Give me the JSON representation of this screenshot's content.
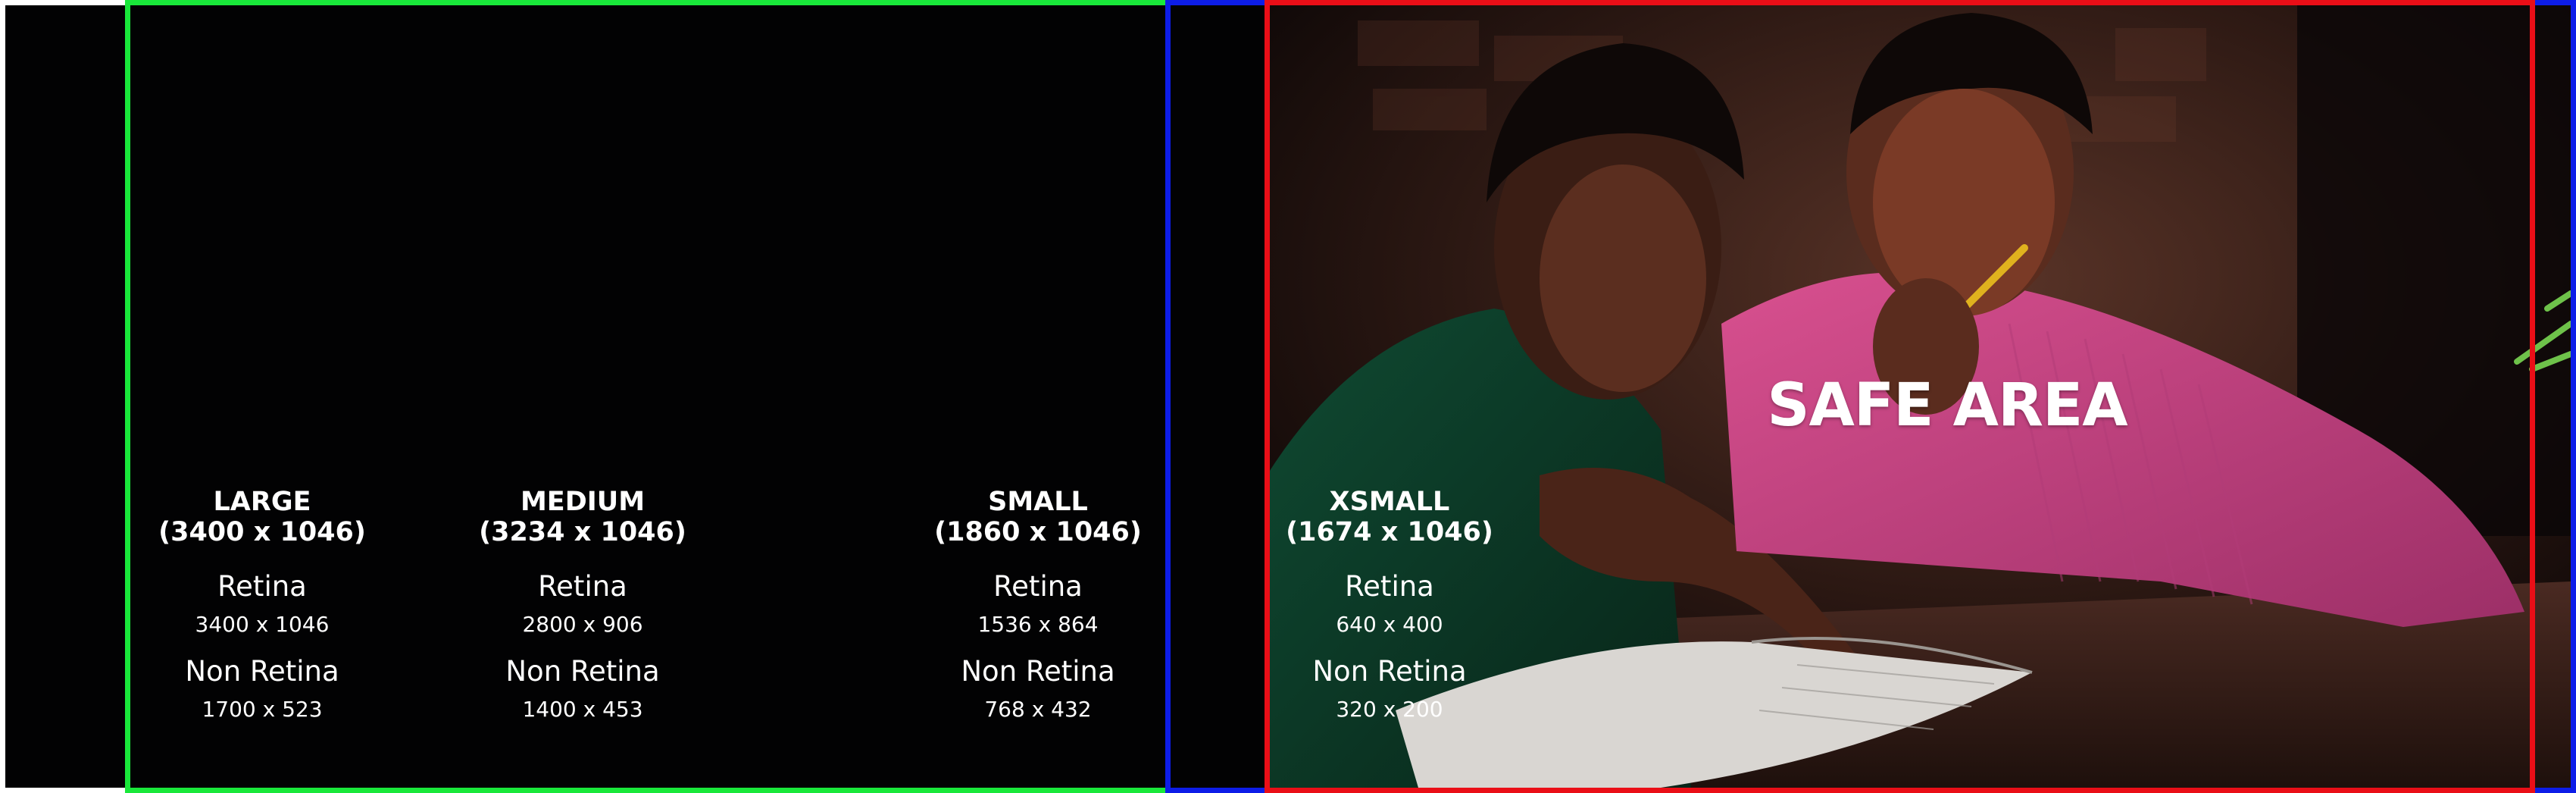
{
  "colors": {
    "background": "#020203",
    "large_frame": "#19e83a",
    "medium_frame": "#0d1de8",
    "xsmall_frame": "#ea0e17",
    "text": "#ffffff"
  },
  "photo_description_icon": "photo-two-girls-studying",
  "safe_area_label": "SAFE AREA",
  "sizes": [
    {
      "name": "LARGE",
      "dims": "(3400 x 1046)",
      "retina_title": "Retina",
      "retina_dims": "3400 x 1046",
      "nonretina_title": "Non Retina",
      "nonretina_dims": "1700 x 523"
    },
    {
      "name": "MEDIUM",
      "dims": "(3234 x 1046)",
      "retina_title": "Retina",
      "retina_dims": "2800 x 906",
      "nonretina_title": "Non Retina",
      "nonretina_dims": "1400 x 453"
    },
    {
      "name": "SMALL",
      "dims": "(1860 x 1046)",
      "retina_title": "Retina",
      "retina_dims": "1536 x 864",
      "nonretina_title": "Non Retina",
      "nonretina_dims": "768 x 432"
    },
    {
      "name": "XSMALL",
      "dims": "(1674 x 1046)",
      "retina_title": "Retina",
      "retina_dims": "640 x 400",
      "nonretina_title": "Non Retina",
      "nonretina_dims": "320 x 200"
    }
  ]
}
